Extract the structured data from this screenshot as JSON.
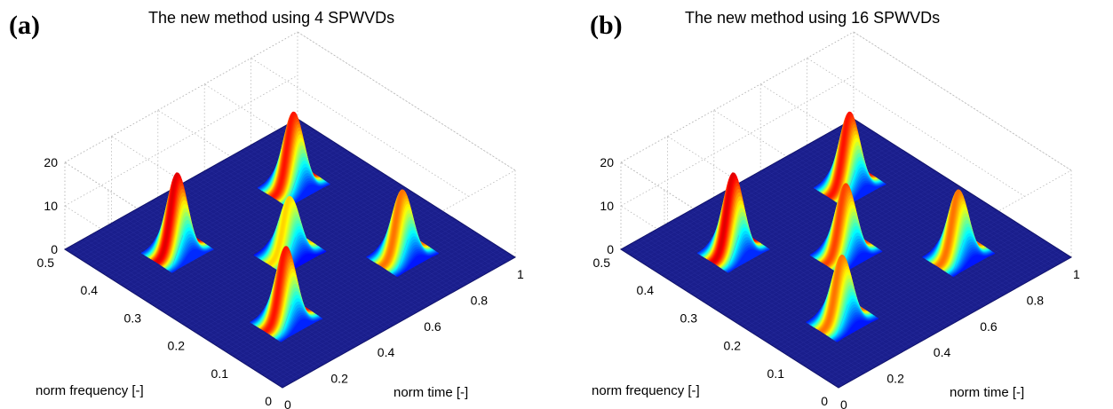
{
  "chart_data": [
    {
      "type": "surface",
      "panel_label": "(a)",
      "title": "The new method using 4 SPWVDs",
      "xlabel": "norm time [-]",
      "ylabel": "norm frequency [-]",
      "zlabel": "",
      "x_ticks": [
        "0",
        "0.2",
        "0.4",
        "0.6",
        "0.8",
        "1"
      ],
      "y_ticks": [
        "0",
        "0.1",
        "0.2",
        "0.3",
        "0.4",
        "0.5"
      ],
      "z_ticks": [
        "0",
        "10",
        "20"
      ],
      "xlim": [
        0,
        1
      ],
      "ylim": [
        0,
        0.5
      ],
      "zlim": [
        0,
        20
      ],
      "grid": true,
      "colormap": "jet",
      "peaks": [
        {
          "time": 0.25,
          "frequency": 0.375,
          "height": 18
        },
        {
          "time": 0.75,
          "frequency": 0.375,
          "height": 17
        },
        {
          "time": 0.5,
          "frequency": 0.25,
          "height": 13
        },
        {
          "time": 0.25,
          "frequency": 0.125,
          "height": 17
        },
        {
          "time": 0.75,
          "frequency": 0.125,
          "height": 15
        }
      ]
    },
    {
      "type": "surface",
      "panel_label": "(b)",
      "title": "The new method using 16 SPWVDs",
      "xlabel": "norm time [-]",
      "ylabel": "norm frequency [-]",
      "zlabel": "",
      "x_ticks": [
        "0",
        "0.2",
        "0.4",
        "0.6",
        "0.8",
        "1"
      ],
      "y_ticks": [
        "0",
        "0.1",
        "0.2",
        "0.3",
        "0.4",
        "0.5"
      ],
      "z_ticks": [
        "0",
        "10",
        "20"
      ],
      "xlim": [
        0,
        1
      ],
      "ylim": [
        0,
        0.5
      ],
      "zlim": [
        0,
        20
      ],
      "grid": true,
      "colormap": "jet",
      "peaks": [
        {
          "time": 0.25,
          "frequency": 0.375,
          "height": 18
        },
        {
          "time": 0.75,
          "frequency": 0.375,
          "height": 17
        },
        {
          "time": 0.5,
          "frequency": 0.25,
          "height": 16
        },
        {
          "time": 0.25,
          "frequency": 0.125,
          "height": 15
        },
        {
          "time": 0.75,
          "frequency": 0.125,
          "height": 15
        }
      ]
    }
  ]
}
